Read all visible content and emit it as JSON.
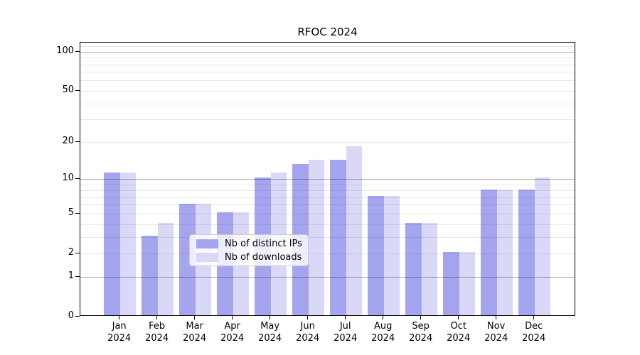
{
  "title": "RFOC 2024",
  "chart_data": {
    "type": "bar",
    "title": "RFOC 2024",
    "categories": [
      "Jan",
      "Feb",
      "Mar",
      "Apr",
      "May",
      "Jun",
      "Jul",
      "Aug",
      "Sep",
      "Oct",
      "Nov",
      "Dec"
    ],
    "category_year": "2024",
    "series": [
      {
        "name": "Nb of distinct IPs",
        "color": "#a5a5ef",
        "values": [
          11,
          3,
          6,
          5,
          10,
          13,
          14,
          7,
          4,
          2,
          8,
          8
        ]
      },
      {
        "name": "Nb of downloads",
        "color": "#d9d9f7",
        "values": [
          11,
          4,
          6,
          5,
          11,
          14,
          18,
          7,
          4,
          2,
          8,
          10
        ]
      }
    ],
    "yscale": "log1p",
    "ylim": [
      0,
      118
    ],
    "yticks": [
      0,
      1,
      2,
      5,
      10,
      20,
      50,
      100
    ],
    "major_gridlines": [
      1,
      10,
      100
    ],
    "minor_gridlines": [
      2,
      3,
      4,
      5,
      6,
      7,
      8,
      9,
      20,
      30,
      40,
      50,
      60,
      70,
      80,
      90,
      110
    ],
    "grid": true,
    "legend_position": "lower center",
    "xlabel": "",
    "ylabel": ""
  }
}
